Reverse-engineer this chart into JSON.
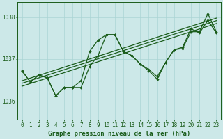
{
  "title": "Graphe pression niveau de la mer (hPa)",
  "xlabel_hours": [
    0,
    1,
    2,
    3,
    4,
    5,
    6,
    7,
    8,
    9,
    10,
    11,
    12,
    13,
    14,
    15,
    16,
    17,
    18,
    19,
    20,
    21,
    22,
    23
  ],
  "ylim": [
    1035.55,
    1038.35
  ],
  "yticks": [
    1036,
    1037,
    1038
  ],
  "background_color": "#cce8e8",
  "grid_color": "#aad4d4",
  "line_color": "#1a5c1a",
  "text_color": "#1a5c1a",
  "series": {
    "jagged1": [
      1036.72,
      1036.45,
      1036.62,
      1036.55,
      1036.12,
      1036.32,
      1036.32,
      1036.48,
      1037.18,
      1037.45,
      1037.58,
      1037.58,
      1037.18,
      1037.08,
      1036.88,
      1036.72,
      1036.52,
      1036.92,
      1037.22,
      1037.28,
      1037.72,
      1037.62,
      1037.92,
      1037.62
    ],
    "jagged2": [
      1036.72,
      1036.45,
      1036.62,
      1036.55,
      1036.12,
      1036.32,
      1036.32,
      1036.32,
      1036.82,
      1037.08,
      1037.58,
      1037.58,
      1037.18,
      1037.08,
      1036.88,
      1036.75,
      1036.58,
      1036.92,
      1037.22,
      1037.25,
      1037.65,
      1037.65,
      1038.08,
      1037.65
    ],
    "trend1": [
      1036.48,
      1036.545,
      1036.61,
      1036.675,
      1036.74,
      1036.805,
      1036.87,
      1036.935,
      1037.0,
      1037.065,
      1037.13,
      1037.195,
      1037.26,
      1037.325,
      1037.39,
      1037.455,
      1037.52,
      1037.585,
      1037.65,
      1037.715,
      1037.78,
      1037.845,
      1037.91,
      1037.975
    ],
    "trend2": [
      1036.42,
      1036.485,
      1036.55,
      1036.615,
      1036.68,
      1036.745,
      1036.81,
      1036.875,
      1036.94,
      1037.005,
      1037.07,
      1037.135,
      1037.2,
      1037.265,
      1037.33,
      1037.395,
      1037.46,
      1037.525,
      1037.59,
      1037.655,
      1037.72,
      1037.785,
      1037.85,
      1037.915
    ],
    "trend3": [
      1036.35,
      1036.415,
      1036.48,
      1036.545,
      1036.61,
      1036.675,
      1036.74,
      1036.805,
      1036.87,
      1036.935,
      1037.0,
      1037.065,
      1037.13,
      1037.195,
      1037.26,
      1037.325,
      1037.39,
      1037.455,
      1037.52,
      1037.585,
      1037.65,
      1037.715,
      1037.78,
      1037.845
    ]
  },
  "font_size_label": 6.5,
  "font_size_tick": 5.5
}
